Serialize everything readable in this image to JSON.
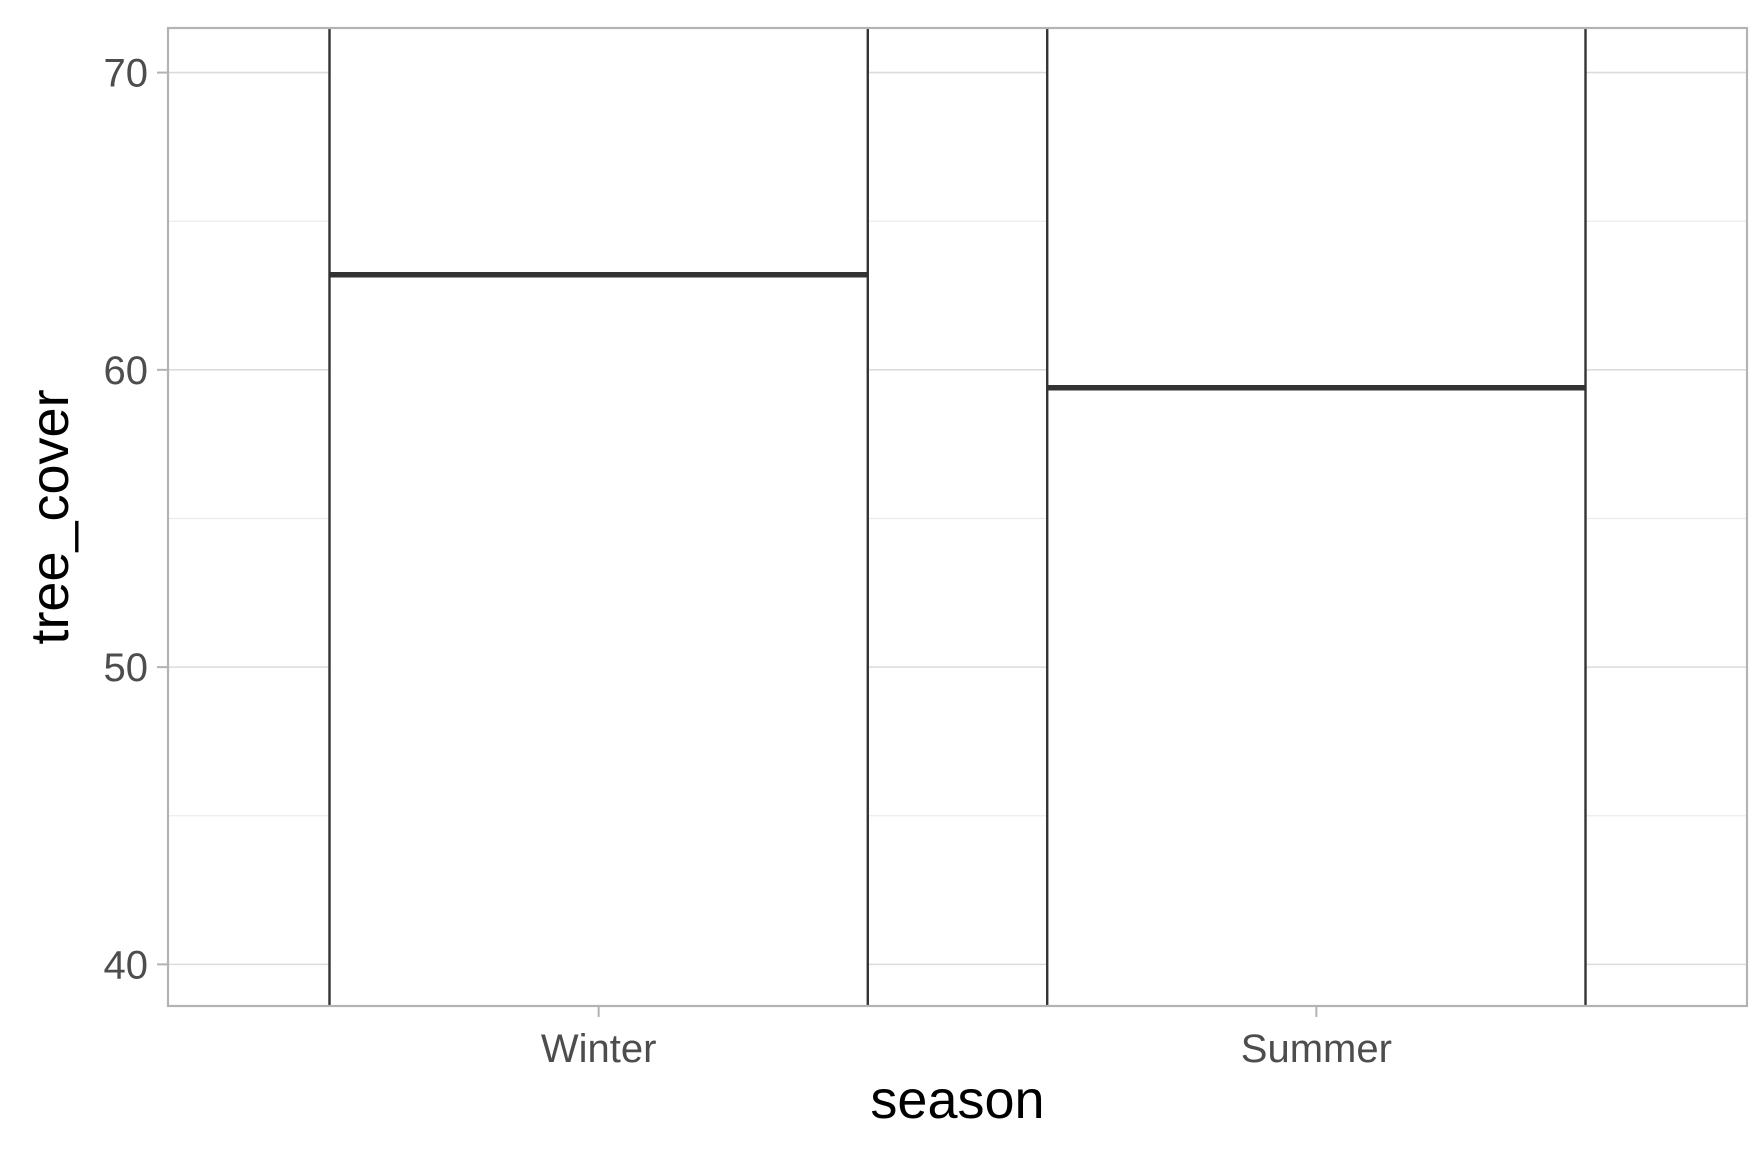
{
  "chart_data": {
    "type": "box",
    "title": "",
    "xlabel": "season",
    "ylabel": "tree_cover",
    "categories": [
      "Winter",
      "Summer"
    ],
    "medians": [
      63.2,
      59.4
    ],
    "boxes": [
      {
        "category": "Winter",
        "lower": 38.6,
        "upper": 71.5,
        "median": 63.2
      },
      {
        "category": "Summer",
        "lower": 38.6,
        "upper": 71.5,
        "median": 59.4
      }
    ],
    "ylim": [
      38.6,
      71.5
    ],
    "yticks": [
      40,
      50,
      60,
      70
    ],
    "ytick_labels": [
      "40",
      "50",
      "60",
      "70"
    ],
    "grid": true,
    "legend": "none",
    "colors": {
      "box_fill": "#ffffff",
      "box_line": "#333333",
      "median_line": "#333333",
      "panel_border": "#b3b3b3",
      "grid_major": "#dcdcdc",
      "grid_minor": "#ebebeb",
      "tick_text": "#4d4d4d",
      "axis_title": "#000000"
    }
  }
}
